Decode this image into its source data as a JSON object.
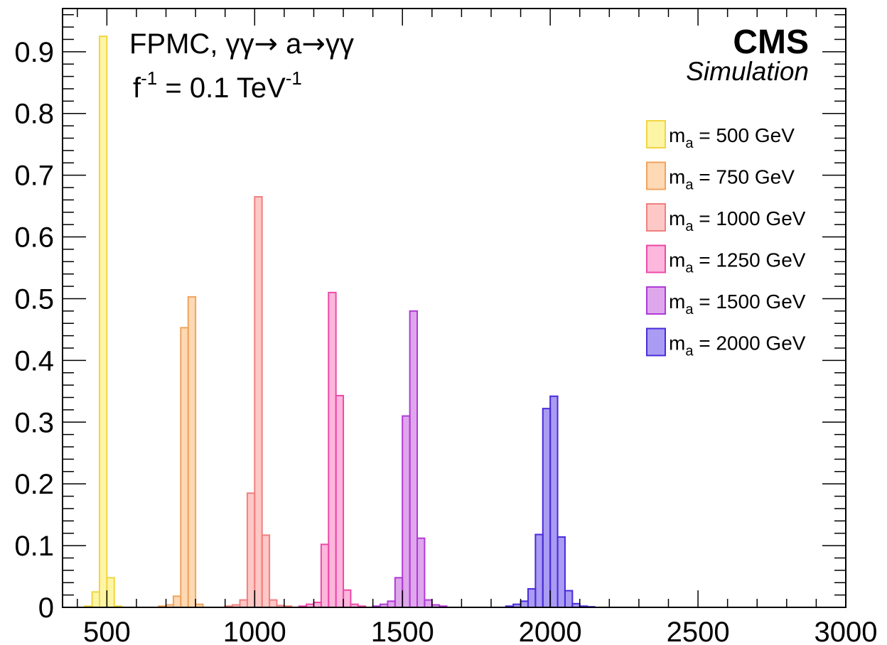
{
  "chart_data": {
    "type": "bar",
    "title": "",
    "xlabel": "",
    "ylabel": "",
    "xlim": [
      350,
      3000
    ],
    "ylim": [
      0,
      0.97
    ],
    "grid": false,
    "legend_position": "right",
    "bin_width": 25,
    "xticks": [
      "500",
      "1000",
      "1500",
      "2000",
      "2500",
      "3000"
    ],
    "yticks": [
      "0",
      "0.1",
      "0.2",
      "0.3",
      "0.4",
      "0.5",
      "0.6",
      "0.7",
      "0.8",
      "0.9"
    ],
    "annotation": {
      "process_prefix": "FPMC, γγ",
      "process_middle": " a",
      "process_suffix": "γγ",
      "arrow": "→",
      "coupling_base": "f",
      "coupling_sup": "-1",
      "coupling_value": " = 0.1 TeV",
      "coupling_unit_sup": "-1"
    },
    "experiment": {
      "name": "CMS",
      "label": "Simulation"
    },
    "series": [
      {
        "mass": "m",
        "mass_sub": "a",
        "label_suffix": " = 500 GeV",
        "fill": "#fdf5a6",
        "line": "#f2d541",
        "bins": [
          [
            425,
            0.002
          ],
          [
            450,
            0.025
          ],
          [
            475,
            0.925
          ],
          [
            500,
            0.048
          ],
          [
            525,
            0.002
          ]
        ]
      },
      {
        "mass": "m",
        "mass_sub": "a",
        "label_suffix": " = 750 GeV",
        "fill": "#fdd9b5",
        "line": "#f2a35c",
        "bins": [
          [
            675,
            0.002
          ],
          [
            700,
            0.004
          ],
          [
            725,
            0.018
          ],
          [
            750,
            0.453
          ],
          [
            775,
            0.503
          ],
          [
            800,
            0.005
          ]
        ]
      },
      {
        "mass": "m",
        "mass_sub": "a",
        "label_suffix": " = 1000 GeV",
        "fill": "#fdc8c5",
        "line": "#f08080",
        "bins": [
          [
            900,
            0.002
          ],
          [
            925,
            0.004
          ],
          [
            950,
            0.012
          ],
          [
            975,
            0.185
          ],
          [
            1000,
            0.665
          ],
          [
            1025,
            0.117
          ],
          [
            1050,
            0.012
          ],
          [
            1075,
            0.003
          ],
          [
            1100,
            0.002
          ]
        ]
      },
      {
        "mass": "m",
        "mass_sub": "a",
        "label_suffix": " = 1250 GeV",
        "fill": "#fdb6dc",
        "line": "#ec4aa8",
        "bins": [
          [
            1150,
            0.002
          ],
          [
            1175,
            0.005
          ],
          [
            1200,
            0.008
          ],
          [
            1225,
            0.102
          ],
          [
            1250,
            0.51
          ],
          [
            1275,
            0.343
          ],
          [
            1300,
            0.028
          ],
          [
            1325,
            0.005
          ],
          [
            1350,
            0.002
          ]
        ]
      },
      {
        "mass": "m",
        "mass_sub": "a",
        "label_suffix": " = 1500 GeV",
        "fill": "#dea7ec",
        "line": "#b03ad6",
        "bins": [
          [
            1400,
            0.002
          ],
          [
            1425,
            0.005
          ],
          [
            1450,
            0.01
          ],
          [
            1475,
            0.048
          ],
          [
            1500,
            0.31
          ],
          [
            1525,
            0.48
          ],
          [
            1550,
            0.112
          ],
          [
            1575,
            0.012
          ],
          [
            1600,
            0.004
          ],
          [
            1625,
            0.002
          ]
        ]
      },
      {
        "mass": "m",
        "mass_sub": "a",
        "label_suffix": " = 2000 GeV",
        "fill": "#a99cf2",
        "line": "#4b2bd9",
        "bins": [
          [
            1850,
            0.002
          ],
          [
            1875,
            0.005
          ],
          [
            1900,
            0.01
          ],
          [
            1925,
            0.03
          ],
          [
            1950,
            0.118
          ],
          [
            1975,
            0.322
          ],
          [
            2000,
            0.342
          ],
          [
            2025,
            0.114
          ],
          [
            2050,
            0.027
          ],
          [
            2075,
            0.006
          ],
          [
            2100,
            0.002
          ],
          [
            2125,
            0.001
          ]
        ]
      }
    ]
  }
}
